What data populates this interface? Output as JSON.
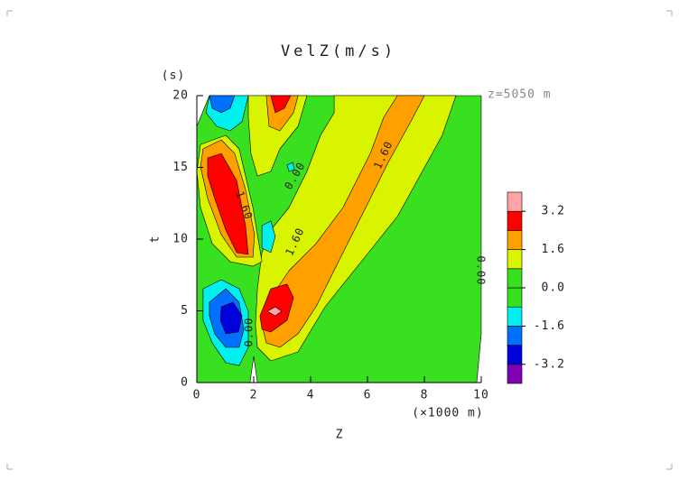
{
  "chart_data": {
    "type": "contour",
    "title": "VelZ(m/s)",
    "annotation": "z=5050 m",
    "xlabel": "Z",
    "xunit": "(×1000 m)",
    "ylabel": "t",
    "yunit": "(s)",
    "xlim": [
      0,
      10
    ],
    "xticks": [
      0,
      2,
      4,
      6,
      8,
      10
    ],
    "ylim": [
      0,
      20
    ],
    "yticks": [
      0,
      5,
      10,
      15,
      20
    ],
    "levels": [
      -3.2,
      -2.4,
      -1.6,
      -0.8,
      0,
      0.8,
      1.6,
      2.4,
      3.2
    ],
    "colors": [
      "#8000b4",
      "#0000dc",
      "#0070ff",
      "#00f0f0",
      "#38e020",
      "#38e020",
      "#d8f400",
      "#ffa000",
      "#ff0000",
      "#ffa4a4"
    ],
    "colorbar_ticks": [
      3.2,
      1.6,
      {
        "value": 0,
        "label": "0.0"
      },
      -1.6,
      -3.2
    ],
    "regions": [
      {
        "level": 0,
        "points": [
          [
            0.44,
            20
          ],
          [
            10,
            20
          ],
          [
            10,
            3.4
          ],
          [
            9.84,
            0
          ],
          [
            2.13,
            0
          ],
          [
            2,
            1.82
          ],
          [
            1.87,
            0
          ],
          [
            0,
            0
          ],
          [
            0,
            17.86
          ]
        ]
      },
      {
        "level": 0.8,
        "points": [
          [
            2.06,
            4.03
          ],
          [
            2.13,
            2.45
          ],
          [
            2.6,
            1.51
          ],
          [
            3.56,
            2.14
          ],
          [
            4.51,
            5.28
          ],
          [
            5.78,
            8.43
          ],
          [
            7.05,
            11.57
          ],
          [
            8.63,
            17.23
          ],
          [
            9.11,
            20
          ],
          [
            4.83,
            20
          ],
          [
            4.83,
            18.81
          ],
          [
            4.35,
            17.23
          ],
          [
            3.87,
            14.72
          ],
          [
            3.24,
            12.2
          ],
          [
            2.6,
            10.63
          ],
          [
            2.29,
            9.06
          ],
          [
            2.13,
            6.54
          ]
        ]
      },
      {
        "level": 0.8,
        "points": [
          [
            1.81,
            20
          ],
          [
            3.87,
            20
          ],
          [
            3.56,
            17.86
          ],
          [
            2.92,
            16.29
          ],
          [
            2.6,
            14.72
          ],
          [
            2.13,
            14.4
          ],
          [
            1.9,
            15.97
          ],
          [
            1.81,
            18.49
          ]
        ]
      },
      {
        "level": 0.8,
        "points": [
          [
            0.13,
            16.6
          ],
          [
            1.02,
            17.23
          ],
          [
            1.49,
            16.29
          ],
          [
            1.97,
            12.2
          ],
          [
            2.29,
            8.43
          ],
          [
            1.97,
            8.11
          ],
          [
            1.17,
            8.43
          ],
          [
            0.54,
            9.69
          ],
          [
            0.13,
            12.2
          ],
          [
            0,
            14.72
          ]
        ]
      },
      {
        "level": 1.6,
        "points": [
          [
            2.29,
            4.03
          ],
          [
            2.6,
            5.91
          ],
          [
            3.24,
            7.8
          ],
          [
            4.19,
            9.69
          ],
          [
            5.14,
            12.2
          ],
          [
            6.1,
            15.97
          ],
          [
            6.57,
            18.49
          ],
          [
            7.05,
            20
          ],
          [
            8,
            20
          ],
          [
            7.52,
            18.18
          ],
          [
            6.73,
            15.35
          ],
          [
            5.94,
            12.2
          ],
          [
            4.98,
            8.43
          ],
          [
            4.19,
            5.28
          ],
          [
            3.56,
            3.4
          ],
          [
            2.92,
            2.45
          ],
          [
            2.44,
            2.77
          ]
        ]
      },
      {
        "level": 1.6,
        "points": [
          [
            0.22,
            16.29
          ],
          [
            0.86,
            16.92
          ],
          [
            1.33,
            15.97
          ],
          [
            1.71,
            13.46
          ],
          [
            2.03,
            10.31
          ],
          [
            1.97,
            8.74
          ],
          [
            1.4,
            8.74
          ],
          [
            0.86,
            10.31
          ],
          [
            0.38,
            12.83
          ],
          [
            0.13,
            15.03
          ]
        ]
      },
      {
        "level": 1.6,
        "points": [
          [
            2.44,
            20
          ],
          [
            3.56,
            20
          ],
          [
            3.4,
            18.81
          ],
          [
            2.92,
            17.55
          ],
          [
            2.54,
            17.86
          ]
        ]
      },
      {
        "level": 2.4,
        "points": [
          [
            0.38,
            15.66
          ],
          [
            0.86,
            15.97
          ],
          [
            1.4,
            14.09
          ],
          [
            1.71,
            10.94
          ],
          [
            1.81,
            8.93
          ],
          [
            1.4,
            9.06
          ],
          [
            1.02,
            10.63
          ],
          [
            0.63,
            12.83
          ],
          [
            0.38,
            14.4
          ]
        ]
      },
      {
        "level": 2.4,
        "points": [
          [
            2.22,
            4.65
          ],
          [
            2.6,
            6.54
          ],
          [
            3.17,
            6.86
          ],
          [
            3.4,
            5.91
          ],
          [
            3.17,
            4.34
          ],
          [
            2.6,
            3.52
          ],
          [
            2.29,
            3.71
          ]
        ]
      },
      {
        "level": 2.4,
        "points": [
          [
            2.6,
            20
          ],
          [
            3.3,
            20
          ],
          [
            3.08,
            19.12
          ],
          [
            2.76,
            18.81
          ]
        ]
      },
      {
        "level": 3.2,
        "points": [
          [
            2.48,
            4.97
          ],
          [
            2.76,
            5.28
          ],
          [
            2.98,
            4.97
          ],
          [
            2.76,
            4.65
          ]
        ]
      },
      {
        "level": -0.8,
        "points": [
          [
            0.22,
            6.54
          ],
          [
            0.86,
            7.17
          ],
          [
            1.49,
            6.54
          ],
          [
            1.81,
            4.97
          ],
          [
            1.81,
            2.45
          ],
          [
            1.49,
            1.19
          ],
          [
            1.02,
            1.38
          ],
          [
            0.54,
            2.77
          ],
          [
            0.22,
            4.34
          ]
        ]
      },
      {
        "level": -0.8,
        "points": [
          [
            0.44,
            20
          ],
          [
            1.81,
            20
          ],
          [
            1.59,
            18.18
          ],
          [
            1.17,
            17.55
          ],
          [
            0.7,
            17.86
          ],
          [
            0.32,
            18.81
          ]
        ]
      },
      {
        "level": -0.8,
        "points": [
          [
            2.29,
            10.94
          ],
          [
            2.6,
            11.26
          ],
          [
            2.76,
            10.19
          ],
          [
            2.6,
            9.06
          ],
          [
            2.29,
            9.37
          ]
        ]
      },
      {
        "level": -0.8,
        "points": [
          [
            3.17,
            15.16
          ],
          [
            3.37,
            15.35
          ],
          [
            3.43,
            14.84
          ],
          [
            3.24,
            14.72
          ]
        ]
      },
      {
        "level": -1.6,
        "points": [
          [
            0.44,
            5.6
          ],
          [
            1.02,
            6.54
          ],
          [
            1.49,
            5.6
          ],
          [
            1.65,
            3.71
          ],
          [
            1.49,
            2.45
          ],
          [
            1.02,
            2.45
          ],
          [
            0.63,
            3.4
          ],
          [
            0.44,
            4.65
          ]
        ]
      },
      {
        "level": -1.6,
        "points": [
          [
            0.44,
            20
          ],
          [
            1.33,
            20
          ],
          [
            1.17,
            19.12
          ],
          [
            0.86,
            18.81
          ],
          [
            0.54,
            19.12
          ]
        ]
      },
      {
        "level": -2.4,
        "points": [
          [
            0.86,
            5.28
          ],
          [
            1.27,
            5.6
          ],
          [
            1.59,
            4.65
          ],
          [
            1.46,
            3.52
          ],
          [
            1.02,
            3.4
          ],
          [
            0.83,
            4.34
          ]
        ]
      }
    ],
    "contour_labels": [
      {
        "text": "1.60",
        "x": 1.65,
        "y": 12.33
      },
      {
        "text": "0.00",
        "x": 3.46,
        "y": 14.4
      },
      {
        "text": "1.60",
        "x": 3.46,
        "y": 9.81
      },
      {
        "text": "1.60",
        "x": 6.57,
        "y": 15.85
      },
      {
        "text": "0.00",
        "x": 1.84,
        "y": 3.52
      },
      {
        "text": "0.00",
        "x": 9.97,
        "y": 7.8
      }
    ]
  }
}
